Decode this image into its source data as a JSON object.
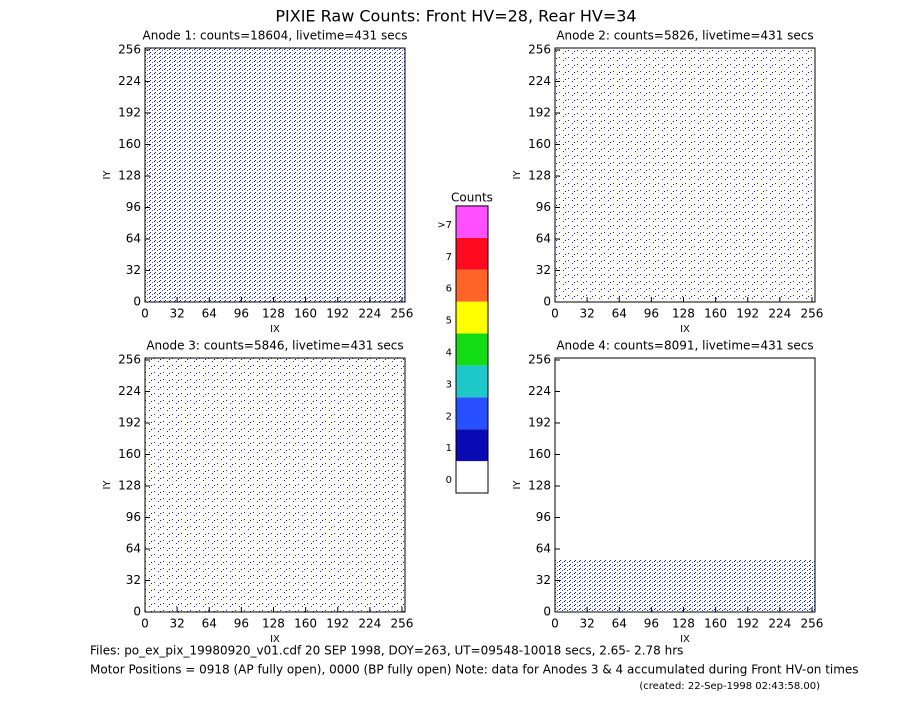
{
  "title": "PIXIE Raw Counts:  Front HV=28, Rear HV=34",
  "panels": [
    {
      "title": "Anode 1: counts=18604, livetime=431 secs",
      "xlabel": "IX",
      "ylabel": "IY",
      "xlim": [
        0,
        259
      ],
      "ylim": [
        0,
        258
      ],
      "xticks": [
        0,
        32,
        64,
        96,
        128,
        160,
        192,
        224,
        256
      ],
      "yticks": [
        0,
        32,
        64,
        96,
        128,
        160,
        192,
        224,
        256
      ]
    },
    {
      "title": "Anode 2: counts=5826, livetime=431 secs",
      "xlabel": "IX",
      "ylabel": "IY",
      "xlim": [
        0,
        259
      ],
      "ylim": [
        0,
        258
      ],
      "xticks": [
        0,
        32,
        64,
        96,
        128,
        160,
        192,
        224,
        256
      ],
      "yticks": [
        0,
        32,
        64,
        96,
        128,
        160,
        192,
        224,
        256
      ]
    },
    {
      "title": "Anode 3: counts=5846, livetime=431 secs",
      "xlabel": "IX",
      "ylabel": "IY",
      "xlim": [
        0,
        259
      ],
      "ylim": [
        0,
        258
      ],
      "xticks": [
        0,
        32,
        64,
        96,
        128,
        160,
        192,
        224,
        256
      ],
      "yticks": [
        0,
        32,
        64,
        96,
        128,
        160,
        192,
        224,
        256
      ]
    },
    {
      "title": "Anode 4: counts=8091, livetime=431 secs",
      "xlabel": "IX",
      "ylabel": "IY",
      "xlim": [
        0,
        259
      ],
      "ylim": [
        0,
        258
      ],
      "xticks": [
        0,
        32,
        64,
        96,
        128,
        160,
        192,
        224,
        256
      ],
      "yticks": [
        0,
        32,
        64,
        96,
        128,
        160,
        192,
        224,
        256
      ]
    }
  ],
  "colorbar": {
    "title": "Counts",
    "levels": [
      {
        "label": "0",
        "color": "#ffffff"
      },
      {
        "label": "1",
        "color": "#0a0ab4"
      },
      {
        "label": "2",
        "color": "#2850ff"
      },
      {
        "label": "3",
        "color": "#1ec8c8"
      },
      {
        "label": "4",
        "color": "#14dc14"
      },
      {
        "label": "5",
        "color": "#ffff00"
      },
      {
        "label": "6",
        "color": "#ff6428"
      },
      {
        "label": "7",
        "color": "#ff0a1e"
      },
      {
        "label": ">7",
        "color": "#ff50ff"
      }
    ]
  },
  "footer": {
    "files": "Files: po_ex_pix_19980920_v01.cdf    20 SEP 1998, DOY=263, UT=09548-10018 secs,  2.65- 2.78 hrs",
    "motor": "Motor Positions = 0918 (AP fully open), 0000 (BP fully open)    Note: data for Anodes 3 & 4 accumulated during Front HV-on times",
    "created": "(created: 22-Sep-1998 02:43:58.00)"
  }
}
